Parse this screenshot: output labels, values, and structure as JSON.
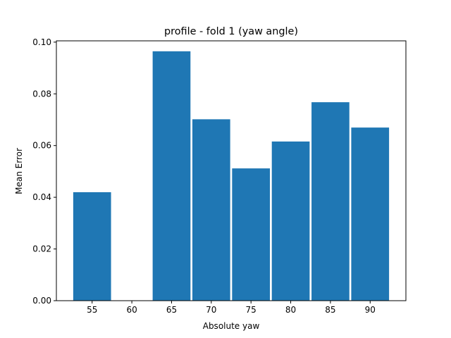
{
  "chart_data": {
    "type": "bar",
    "title": "profile - fold 1 (yaw angle)",
    "xlabel": "Absolute yaw",
    "ylabel": "Mean Error",
    "xlim": [
      50.5,
      94.5
    ],
    "ylim": [
      0.0,
      0.1005
    ],
    "xticks": [
      55,
      60,
      65,
      70,
      75,
      80,
      85,
      90
    ],
    "xtick_labels": [
      "55",
      "60",
      "65",
      "70",
      "75",
      "80",
      "85",
      "90"
    ],
    "yticks": [
      0.0,
      0.02,
      0.04,
      0.06,
      0.08,
      0.1
    ],
    "ytick_labels": [
      "0.00",
      "0.02",
      "0.04",
      "0.06",
      "0.08",
      "0.10"
    ],
    "bar_width": 4.85,
    "x": [
      55,
      65,
      70,
      75,
      80,
      85,
      90
    ],
    "values": [
      0.0421,
      0.0966,
      0.0703,
      0.0513,
      0.0617,
      0.0769,
      0.0671
    ],
    "colors": {
      "bar": "#1f77b4",
      "bar_edge": "#ffffff",
      "axes": "#000000"
    },
    "grid": false,
    "legend": "none"
  }
}
